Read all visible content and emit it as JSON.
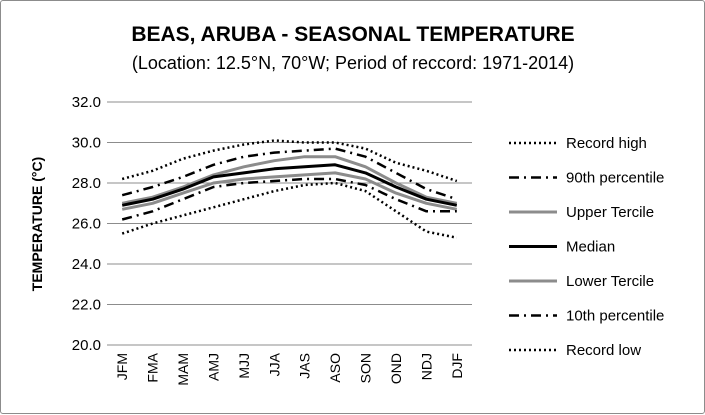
{
  "chart_data": {
    "type": "line",
    "title": "BEAS, ARUBA - SEASONAL TEMPERATURE",
    "subtitle": "(Location: 12.5°N, 70°W; Period of reccord: 1971-2014)",
    "xlabel": "",
    "ylabel": "TEMPERATURE (°C)",
    "ylim": [
      20.0,
      32.0
    ],
    "yticks": [
      "20.0",
      "22.0",
      "24.0",
      "26.0",
      "28.0",
      "30.0",
      "32.0"
    ],
    "grid": true,
    "legend_position": "right",
    "categories": [
      "JFM",
      "FMA",
      "MAM",
      "AMJ",
      "MJJ",
      "JJA",
      "JAS",
      "ASO",
      "SON",
      "OND",
      "NDJ",
      "DJF"
    ],
    "series": [
      {
        "name": "Record high",
        "style": "dotted",
        "color": "#000000",
        "values": [
          28.2,
          28.6,
          29.2,
          29.6,
          29.9,
          30.1,
          30.0,
          30.0,
          29.7,
          29.0,
          28.6,
          28.1
        ]
      },
      {
        "name": "90th percentile",
        "style": "dashdot",
        "color": "#000000",
        "values": [
          27.4,
          27.8,
          28.3,
          28.9,
          29.3,
          29.5,
          29.6,
          29.7,
          29.3,
          28.5,
          27.7,
          27.2
        ]
      },
      {
        "name": "Upper Tercile",
        "style": "solid",
        "color": "#8c8c8c",
        "values": [
          27.0,
          27.3,
          27.8,
          28.4,
          28.8,
          29.1,
          29.3,
          29.3,
          28.8,
          28.0,
          27.3,
          27.0
        ]
      },
      {
        "name": "Median",
        "style": "solid",
        "color": "#000000",
        "values": [
          26.9,
          27.2,
          27.7,
          28.3,
          28.5,
          28.7,
          28.8,
          28.9,
          28.5,
          27.8,
          27.2,
          26.9
        ]
      },
      {
        "name": "Lower Tercile",
        "style": "solid",
        "color": "#8c8c8c",
        "values": [
          26.7,
          27.0,
          27.5,
          28.0,
          28.2,
          28.3,
          28.4,
          28.5,
          28.2,
          27.5,
          27.0,
          26.7
        ]
      },
      {
        "name": "10th percentile",
        "style": "dashdot",
        "color": "#000000",
        "values": [
          26.2,
          26.6,
          27.2,
          27.8,
          28.0,
          28.1,
          28.2,
          28.2,
          27.9,
          27.2,
          26.6,
          26.6
        ]
      },
      {
        "name": "Record low",
        "style": "dotted",
        "color": "#000000",
        "values": [
          25.5,
          26.0,
          26.4,
          26.8,
          27.2,
          27.6,
          27.9,
          28.0,
          27.6,
          26.6,
          25.6,
          25.3
        ]
      }
    ]
  }
}
